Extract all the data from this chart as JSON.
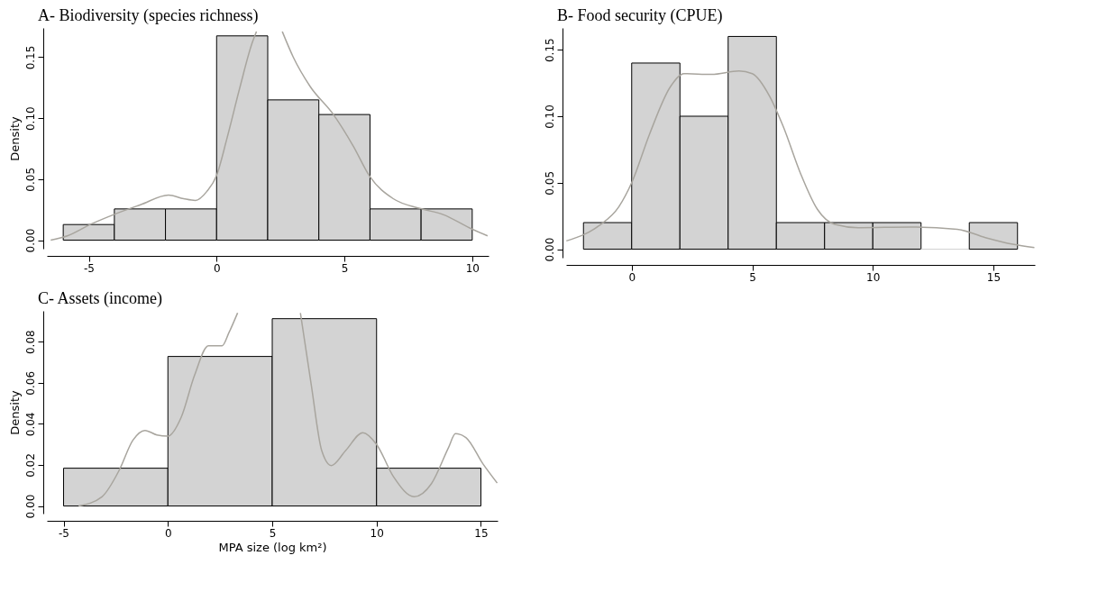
{
  "chart_data": [
    {
      "type": "histogram",
      "title": "A- Biodiversity (species richness)",
      "ylabel": "Density",
      "bins": [
        -6,
        -4,
        -2,
        0,
        2,
        4,
        6,
        8,
        10
      ],
      "values": [
        0.0128,
        0.0256,
        0.0256,
        0.1675,
        0.115,
        0.103,
        0.0256,
        0.0256
      ],
      "color": "#d3d3d3",
      "series": [
        {
          "type": "line",
          "color": "#a8a59e",
          "x": [
            -6.49,
            -5.84,
            -4.93,
            -4.02,
            -2.98,
            -1.88,
            -1.29,
            -0.83,
            -0.38,
            0,
            0.4,
            0.92,
            1.38,
            1.56,
            2.0,
            2.57,
            3.0,
            3.66,
            4.57,
            5.35,
            6.0,
            6.91,
            7.95,
            8.86,
            9.9,
            10.6
          ],
          "values": [
            0,
            0.0035,
            0.013,
            0.021,
            0.029,
            0.037,
            0.034,
            0.0325,
            0.04,
            0.053,
            0.083,
            0.126,
            0.161,
            0.171,
            null,
            0.171,
            0.15,
            0.126,
            0.103,
            0.077,
            0.052,
            0.034,
            0.026,
            0.021,
            0.01,
            0.0035
          ]
        }
      ],
      "xlim": [
        -6.64,
        10.64
      ],
      "xticks": [
        -5,
        0,
        5,
        10
      ],
      "ylim": [
        -0.007,
        0.174
      ],
      "yticks": [
        {
          "value": 0,
          "label": "0.00"
        },
        {
          "value": 0.05,
          "label": "0.05"
        },
        {
          "value": 0.1,
          "label": "0.10"
        },
        {
          "value": 0.15,
          "label": "0.15"
        }
      ]
    },
    {
      "type": "histogram",
      "title": "B- Food security (CPUE)",
      "bins": [
        -2,
        0,
        2,
        4,
        6,
        8,
        10,
        12,
        14,
        16
      ],
      "values": [
        0.02,
        0.14,
        0.1,
        0.16,
        0.02,
        0.02,
        0.02,
        0,
        0.02
      ],
      "color": "#d3d3d3",
      "series": [
        {
          "type": "line",
          "color": "#a8a59e",
          "x": [
            -2.71,
            -1.38,
            -0.53,
            0,
            0.75,
            1.6,
            2.17,
            3.31,
            4.45,
            5.0,
            5.72,
            6.29,
            7.0,
            7.7,
            8.42,
            9.4,
            11.55,
            13.5,
            14.67,
            15.8,
            16.7
          ],
          "values": [
            0.0062,
            0.0174,
            0.032,
            0.05,
            0.087,
            0.122,
            0.132,
            0.1315,
            0.134,
            0.132,
            0.115,
            0.092,
            0.057,
            0.03,
            0.0187,
            0.0162,
            0.0167,
            0.015,
            0.0087,
            0.0037,
            0.0012
          ]
        }
      ],
      "xlim": [
        -2.72,
        16.72
      ],
      "xticks": [
        0,
        5,
        10,
        15
      ],
      "ylim": [
        -0.0064,
        0.1664
      ],
      "yticks": [
        {
          "value": 0,
          "label": "0.00"
        },
        {
          "value": 0.05,
          "label": "0.05"
        },
        {
          "value": 0.1,
          "label": "0.10"
        },
        {
          "value": 0.15,
          "label": "0.15"
        }
      ]
    },
    {
      "type": "histogram",
      "title": "C- Assets (income)",
      "xlabel": "MPA size (log km²)",
      "ylabel": "Density",
      "bins": [
        -5,
        0,
        5,
        10,
        15
      ],
      "values": [
        0.0184,
        0.0728,
        0.0912,
        0.0184
      ],
      "color": "#d3d3d3",
      "series": [
        {
          "type": "line",
          "color": "#a8a59e",
          "x": [
            -4.28,
            -3.16,
            -2.34,
            -1.68,
            -1.1,
            -0.53,
            0,
            0.63,
            1.28,
            1.94,
            2.6,
            2.93,
            3.34,
            5.0,
            6.35,
            6.87,
            7.37,
            7.83,
            8.52,
            9.34,
            10,
            10.82,
            11.8,
            12.63,
            13.45,
            13.78,
            14.28,
            15.1,
            15.78
          ],
          "values": [
            0,
            0.0045,
            0.0173,
            0.032,
            0.0368,
            0.0346,
            0.034,
            0.043,
            0.0637,
            0.078,
            0.078,
            0.0845,
            0.094,
            null,
            0.094,
            0.059,
            0.027,
            0.0197,
            0.027,
            0.0357,
            0.03,
            0.0141,
            0.0045,
            0.0109,
            0.0285,
            0.0352,
            0.0333,
            0.0205,
            0.0112
          ]
        }
      ],
      "xlim": [
        -5.8,
        15.8
      ],
      "xticks": [
        -5,
        0,
        5,
        10,
        15
      ],
      "ylim": [
        -0.0037,
        0.095
      ],
      "yticks": [
        {
          "value": 0,
          "label": "0.00"
        },
        {
          "value": 0.02,
          "label": "0.02"
        },
        {
          "value": 0.04,
          "label": "0.04"
        },
        {
          "value": 0.06,
          "label": "0.06"
        },
        {
          "value": 0.08,
          "label": "0.08"
        }
      ]
    }
  ]
}
